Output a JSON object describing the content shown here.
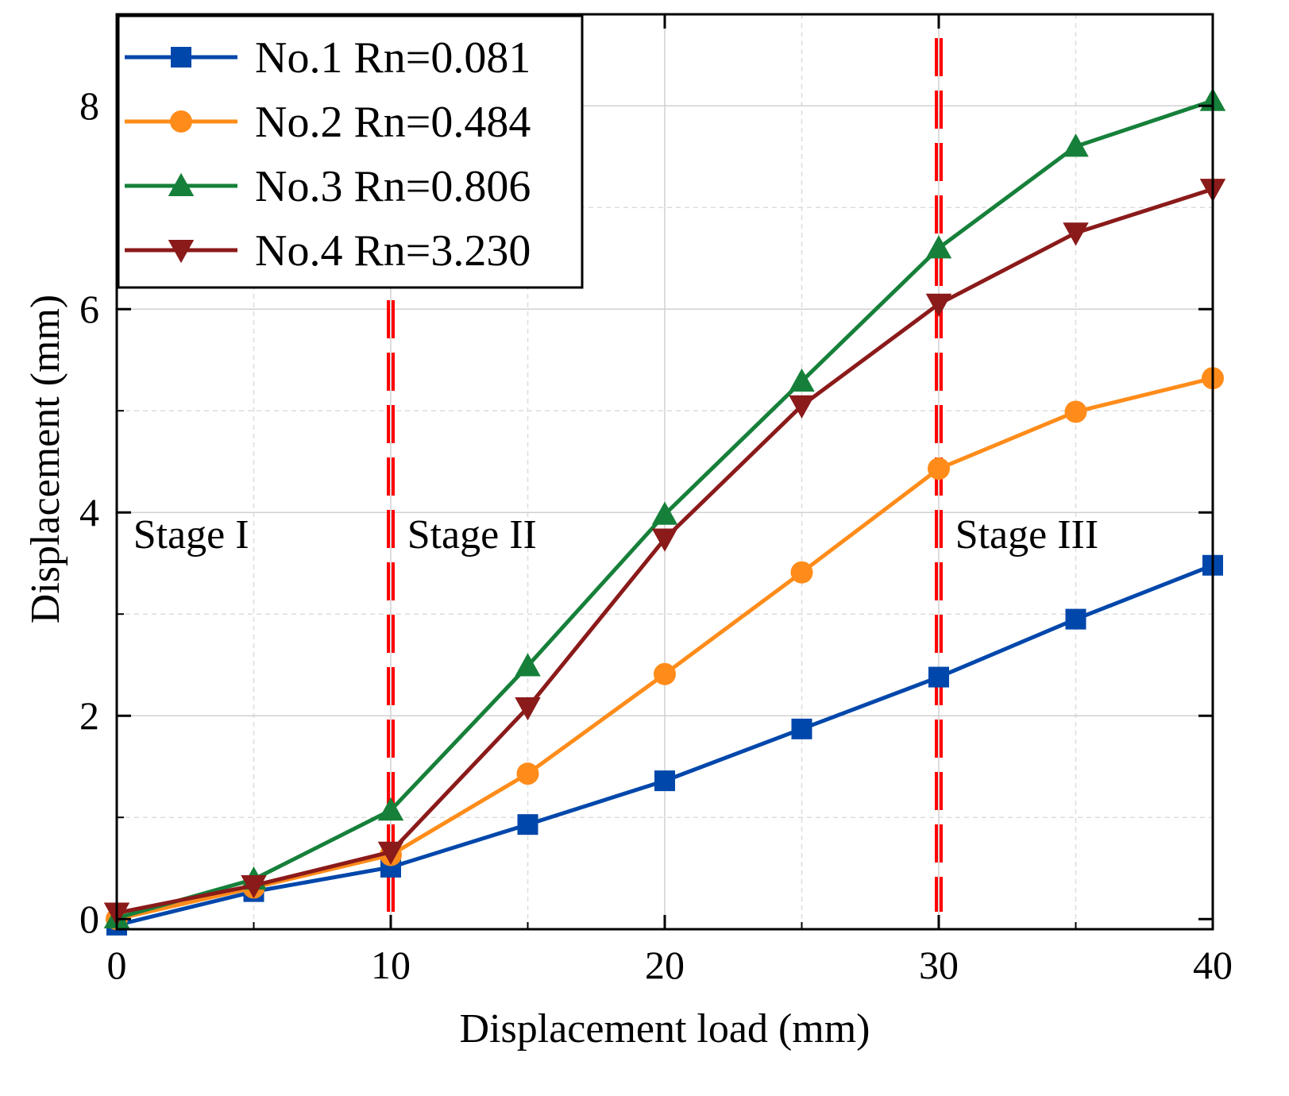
{
  "chart_data": {
    "type": "line",
    "title": "",
    "xlabel": "Displacement load (mm)",
    "ylabel": "Displacement (mm)",
    "xlim": [
      0,
      40
    ],
    "ylim": [
      -0.1,
      8.9
    ],
    "x_ticks": [
      0,
      10,
      20,
      30,
      40
    ],
    "y_ticks": [
      0,
      2,
      4,
      6,
      8
    ],
    "x_tick_labels": [
      "0",
      "10",
      "20",
      "30",
      "40"
    ],
    "y_tick_labels": [
      "0",
      "2",
      "4",
      "6",
      "8"
    ],
    "grid": true,
    "legend_position": "top-left",
    "x": [
      0,
      5,
      10,
      15,
      20,
      25,
      30,
      35,
      40
    ],
    "series": [
      {
        "name": "No.1 Rn=0.081",
        "color": "#0047AB",
        "marker": "square",
        "values": [
          -0.06,
          0.27,
          0.51,
          0.93,
          1.36,
          1.87,
          2.38,
          2.95,
          3.48
        ]
      },
      {
        "name": "No.2 Rn=0.484",
        "color": "#FF8C1A",
        "marker": "circle",
        "values": [
          0.0,
          0.31,
          0.63,
          1.43,
          2.41,
          3.41,
          4.43,
          4.99,
          5.32
        ]
      },
      {
        "name": "No.3 Rn=0.806",
        "color": "#16803A",
        "marker": "triangle-up",
        "values": [
          0.01,
          0.39,
          1.07,
          2.49,
          3.98,
          5.29,
          6.6,
          7.6,
          8.05
        ]
      },
      {
        "name": "No.4 Rn=3.230",
        "color": "#8B1A1A",
        "marker": "triangle-down",
        "values": [
          0.06,
          0.33,
          0.66,
          2.08,
          3.74,
          5.05,
          6.05,
          6.75,
          7.18
        ]
      }
    ],
    "annotations": [
      {
        "text": "Stage I",
        "x": 0.6,
        "y": 3.65
      },
      {
        "text": "Stage II",
        "x": 10.6,
        "y": 3.65
      },
      {
        "text": "Stage III",
        "x": 30.6,
        "y": 3.65
      }
    ],
    "vertical_lines": [
      {
        "x": 10,
        "color": "#FF0000",
        "style": "dashed"
      },
      {
        "x": 30,
        "color": "#FF0000",
        "style": "dashed"
      }
    ]
  }
}
